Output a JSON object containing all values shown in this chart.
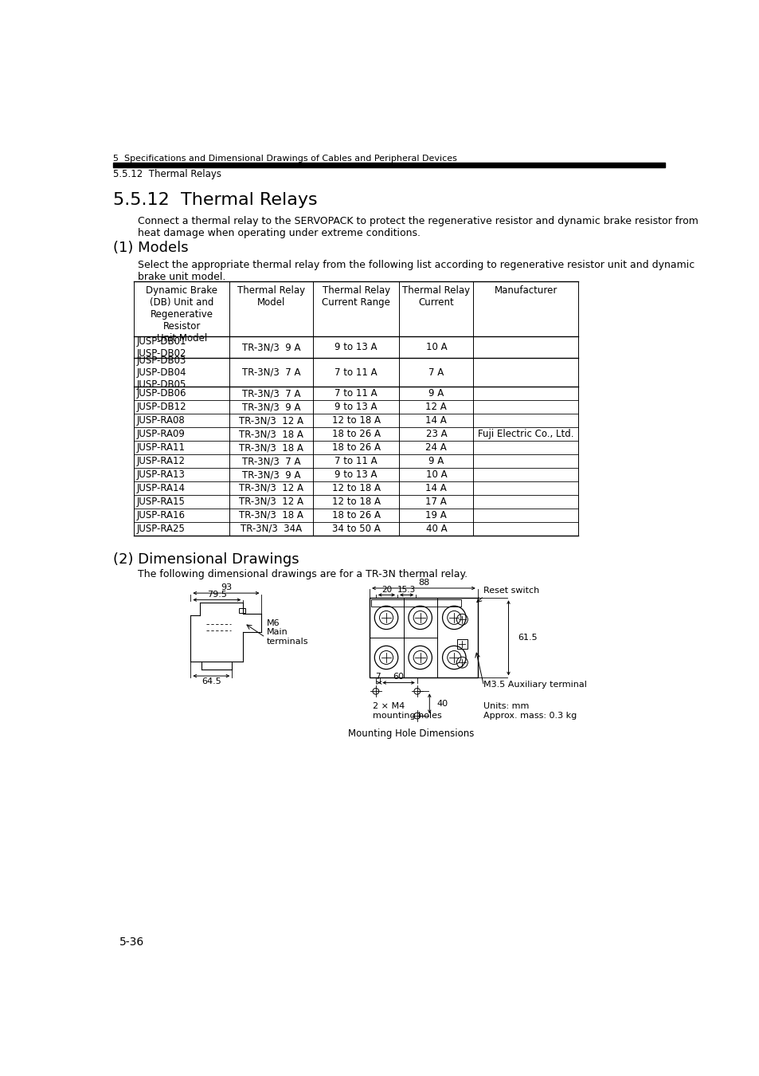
{
  "page_header_top": "5  Specifications and Dimensional Drawings of Cables and Peripheral Devices",
  "page_header_sub": "5.5.12  Thermal Relays",
  "section_title": "5.5.12  Thermal Relays",
  "intro_text": "Connect a thermal relay to the SERVOPACK to protect the regenerative resistor and dynamic brake resistor from\nheat damage when operating under extreme conditions.",
  "subsection1_title": "(1) Models",
  "subsection1_text": "Select the appropriate thermal relay from the following list according to regenerative resistor unit and dynamic\nbrake unit model.",
  "table_headers": [
    "Dynamic Brake\n(DB) Unit and\nRegenerative\nResistor\nUnit Model",
    "Thermal Relay\nModel",
    "Thermal Relay\nCurrent Range",
    "Thermal Relay\nCurrent",
    "Manufacturer"
  ],
  "table_rows": [
    [
      "JUSP-DB01\nJUSP-DB02",
      "TR-3N/3  9 A",
      "9 to 13 A",
      "10 A",
      ""
    ],
    [
      "JUSP-DB03\nJUSP-DB04\nJUSP-DB05",
      "TR-3N/3  7 A",
      "7 to 11 A",
      "7 A",
      ""
    ],
    [
      "JUSP-DB06",
      "TR-3N/3  7 A",
      "7 to 11 A",
      "9 A",
      ""
    ],
    [
      "JUSP-DB12",
      "TR-3N/3  9 A",
      "9 to 13 A",
      "12 A",
      ""
    ],
    [
      "JUSP-RA08",
      "TR-3N/3  12 A",
      "12 to 18 A",
      "14 A",
      ""
    ],
    [
      "JUSP-RA09",
      "TR-3N/3  18 A",
      "18 to 26 A",
      "23 A",
      "Fuji Electric Co., Ltd."
    ],
    [
      "JUSP-RA11",
      "TR-3N/3  18 A",
      "18 to 26 A",
      "24 A",
      ""
    ],
    [
      "JUSP-RA12",
      "TR-3N/3  7 A",
      "7 to 11 A",
      "9 A",
      ""
    ],
    [
      "JUSP-RA13",
      "TR-3N/3  9 A",
      "9 to 13 A",
      "10 A",
      ""
    ],
    [
      "JUSP-RA14",
      "TR-3N/3  12 A",
      "12 to 18 A",
      "14 A",
      ""
    ],
    [
      "JUSP-RA15",
      "TR-3N/3  12 A",
      "12 to 18 A",
      "17 A",
      ""
    ],
    [
      "JUSP-RA16",
      "TR-3N/3  18 A",
      "18 to 26 A",
      "19 A",
      ""
    ],
    [
      "JUSP-RA25",
      "TR-3N/3  34A",
      "34 to 50 A",
      "40 A",
      ""
    ]
  ],
  "subsection2_title": "(2) Dimensional Drawings",
  "subsection2_text": "The following dimensional drawings are for a TR-3N thermal relay.",
  "page_number": "5-36",
  "background_color": "#ffffff",
  "text_color": "#000000"
}
